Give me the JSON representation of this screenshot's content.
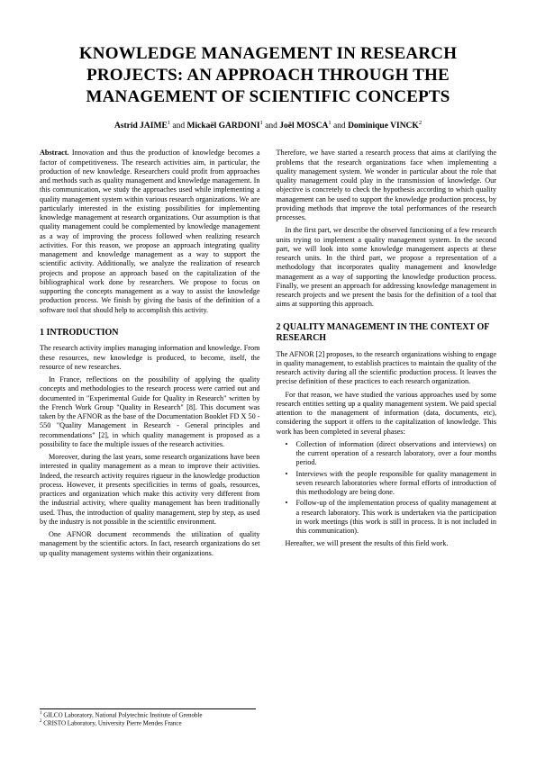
{
  "title": "KNOWLEDGE MANAGEMENT IN RESEARCH PROJECTS: AN APPROACH THROUGH THE MANAGEMENT OF SCIENTIFIC CONCEPTS",
  "authors": {
    "a1": "Astrid JAIME",
    "a2": "Mickaël GARDONI",
    "a3": "Joël MOSCA",
    "a4": "Dominique VINCK",
    "sup1": "1",
    "sup2": "2",
    "and": " and "
  },
  "abstract": {
    "label": "Abstract.",
    "text": " Innovation and thus the production of knowledge becomes a factor of competitiveness. The research activities aim, in particular, the production of new knowledge. Researchers could profit from approaches and methods such as quality management and knowledge management. In this communication, we study the approaches used while implementing a quality management system within various research organizations. We are particularly interested in the existing possibilities for implementing knowledge management at research organizations. Our assumption is that quality management could be complemented by knowledge management as a way of improving the process followed when realizing research activities. For this reason, we propose an approach integrating quality management and knowledge management as a way to support the scientific activity. Additionally, we analyze the realization of research projects and propose an approach based on the capitalization of the bibliographical work done by researchers. We propose to focus on supporting the concepts management as a way to assist the knowledge production process. We finish by giving the basis of the definition of a software tool that should help to accomplish this activity."
  },
  "section1": {
    "heading": "1    INTRODUCTION",
    "p1": "The research activity implies managing information and knowledge. From these resources, new knowledge is produced, to become, itself, the resource of new researches.",
    "p2": "In France, reflections on the possibility of applying the quality concepts and methodologies to the research process were carried out and documented in \"Experimental Guide for Quality in Research\" written by the French Work Group \"Quality in Research\" [8]. This document was taken by the AFNOR as the base of the Documentation Booklet FD X 50 - 550 \"Quality Management in Research - General principles and recommendations\" [2], in which quality management is proposed as a possibility to face the multiple issues of the research activities.",
    "p3": "Moreover, during the last years, some research organizations have been interested in quality management as a mean to improve their activities. Indeed, the research activity requires rigueur in the knowledge production process. However, it presents specificities in terms of goals, resources, practices and organization which make this activity very different from the industrial activity, where quality management has been traditionally used. Thus, the introduction of quality management, step by step, as used by the industry is not possible in the scientific environment.",
    "p4": "One AFNOR document recommends the utilization of quality management by the scientific actors. In fact, research organizations do set up quality management systems within their organizations."
  },
  "col2": {
    "p1": "Therefore, we have started a research process that aims at clarifying the problems that the research organizations face when implementing a quality management system. We wonder in particular about the role that quality management could play in the transmission of knowledge. Our objective is concretely to check the hypothesis according to which quality management can be used to support the knowledge production process, by providing methods that improve the total performances of the research processes.",
    "p2": "In the first part, we describe the observed functioning of a few research units trying to implement a quality management system. In the second part, we will look into some knowledge management aspects at these research units. In the third part, we propose a representation of a methodology that incorporates quality management and knowledge management as a way of supporting the knowledge production process. Finally, we present an approach for addressing knowledge management in research projects and we present the basis for the definition of a tool that aims at supporting this approach."
  },
  "section2": {
    "heading": "2    QUALITY MANAGEMENT IN THE CONTEXT OF RESEARCH",
    "p1": "The AFNOR [2] proposes, to the research organizations wishing to engage in quality management, to establish practices to maintain the quality of the research activity during all the scientific production process. It leaves the precise definition of these practices to each research organization.",
    "p2": "For that reason, we have studied the various approaches used by some research entities setting up a quality management system. We paid special attention to the management of information (data, documents, etc), considering the support it offers to the capitalization of knowledge. This work has been completed in several phases:",
    "bullets": {
      "b1": "Collection of information (direct observations and interviews) on the current operation of a research laboratory, over a four months period.",
      "b2": "Interviews with the people responsible for quality management in seven research laboratories where formal efforts of introduction of this methodology are being done.",
      "b3": "Follow-up of the implementation process of quality management at a research laboratory. This work is undertaken via the participation in work meetings (this work is still in process. It is not included in this communication)."
    },
    "p3": "Hereafter, we will present the results of this field work."
  },
  "footnotes": {
    "f1": " GILCO Laboratory, National Polytechnic Institute of Grenoble",
    "f2": " CRISTO Laboratory, University Pierre Mendes France"
  }
}
